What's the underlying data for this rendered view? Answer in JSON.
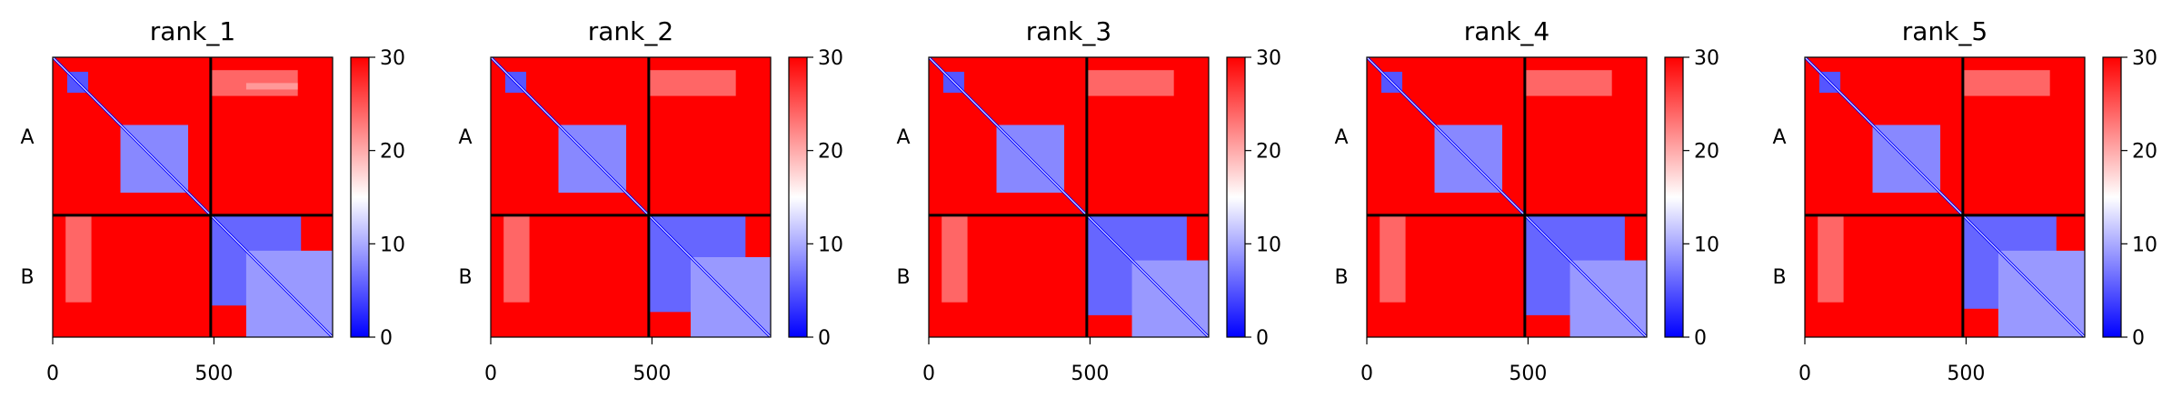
{
  "chart_data": [
    {
      "type": "heatmap",
      "title": "rank_1",
      "x_ticks": [
        0,
        500
      ],
      "y_ticks": [
        "A",
        "B"
      ],
      "xlim": [
        0,
        868
      ],
      "chain_boundary": 490,
      "colorbar": {
        "range": [
          0,
          30
        ],
        "ticks": [
          0,
          10,
          20,
          30
        ],
        "colors": [
          "#0000ff",
          "#ffffff",
          "#ff0000"
        ]
      },
      "regions": [
        {
          "x": [
            0,
            868
          ],
          "y": [
            0,
            868
          ],
          "value": 30
        },
        {
          "x": [
            45,
            110
          ],
          "y": [
            45,
            110
          ],
          "value": 5
        },
        {
          "x": [
            210,
            420
          ],
          "y": [
            210,
            420
          ],
          "value": 8
        },
        {
          "x": [
            490,
            770
          ],
          "y": [
            490,
            770
          ],
          "value": 6
        },
        {
          "x": [
            600,
            868
          ],
          "y": [
            600,
            868
          ],
          "value": 9
        },
        {
          "x": [
            40,
            120
          ],
          "y": [
            490,
            760
          ],
          "value": 24
        },
        {
          "x": [
            490,
            760
          ],
          "y": [
            40,
            120
          ],
          "value": 24
        },
        {
          "x": [
            600,
            760
          ],
          "y": [
            80,
            100
          ],
          "value": 21
        }
      ]
    },
    {
      "type": "heatmap",
      "title": "rank_2",
      "x_ticks": [
        0,
        500
      ],
      "y_ticks": [
        "A",
        "B"
      ],
      "xlim": [
        0,
        868
      ],
      "chain_boundary": 490,
      "colorbar": {
        "range": [
          0,
          30
        ],
        "ticks": [
          0,
          10,
          20,
          30
        ],
        "colors": [
          "#0000ff",
          "#ffffff",
          "#ff0000"
        ]
      },
      "regions": [
        {
          "x": [
            0,
            868
          ],
          "y": [
            0,
            868
          ],
          "value": 30
        },
        {
          "x": [
            45,
            110
          ],
          "y": [
            45,
            110
          ],
          "value": 5
        },
        {
          "x": [
            210,
            420
          ],
          "y": [
            210,
            420
          ],
          "value": 8
        },
        {
          "x": [
            490,
            790
          ],
          "y": [
            490,
            790
          ],
          "value": 6
        },
        {
          "x": [
            620,
            868
          ],
          "y": [
            620,
            868
          ],
          "value": 9
        },
        {
          "x": [
            40,
            120
          ],
          "y": [
            490,
            760
          ],
          "value": 24
        },
        {
          "x": [
            490,
            760
          ],
          "y": [
            40,
            120
          ],
          "value": 24
        }
      ]
    },
    {
      "type": "heatmap",
      "title": "rank_3",
      "x_ticks": [
        0,
        500
      ],
      "y_ticks": [
        "A",
        "B"
      ],
      "xlim": [
        0,
        868
      ],
      "chain_boundary": 490,
      "colorbar": {
        "range": [
          0,
          30
        ],
        "ticks": [
          0,
          10,
          20,
          30
        ],
        "colors": [
          "#0000ff",
          "#ffffff",
          "#ff0000"
        ]
      },
      "regions": [
        {
          "x": [
            0,
            868
          ],
          "y": [
            0,
            868
          ],
          "value": 30
        },
        {
          "x": [
            45,
            110
          ],
          "y": [
            45,
            110
          ],
          "value": 5
        },
        {
          "x": [
            210,
            420
          ],
          "y": [
            210,
            420
          ],
          "value": 8
        },
        {
          "x": [
            490,
            800
          ],
          "y": [
            490,
            800
          ],
          "value": 6
        },
        {
          "x": [
            630,
            868
          ],
          "y": [
            630,
            868
          ],
          "value": 9
        },
        {
          "x": [
            40,
            120
          ],
          "y": [
            490,
            760
          ],
          "value": 24
        },
        {
          "x": [
            490,
            760
          ],
          "y": [
            40,
            120
          ],
          "value": 24
        }
      ]
    },
    {
      "type": "heatmap",
      "title": "rank_4",
      "x_ticks": [
        0,
        500
      ],
      "y_ticks": [
        "A",
        "B"
      ],
      "xlim": [
        0,
        868
      ],
      "chain_boundary": 490,
      "colorbar": {
        "range": [
          0,
          30
        ],
        "ticks": [
          0,
          10,
          20,
          30
        ],
        "colors": [
          "#0000ff",
          "#ffffff",
          "#ff0000"
        ]
      },
      "regions": [
        {
          "x": [
            0,
            868
          ],
          "y": [
            0,
            868
          ],
          "value": 30
        },
        {
          "x": [
            45,
            110
          ],
          "y": [
            45,
            110
          ],
          "value": 5
        },
        {
          "x": [
            210,
            420
          ],
          "y": [
            210,
            420
          ],
          "value": 8
        },
        {
          "x": [
            490,
            800
          ],
          "y": [
            490,
            800
          ],
          "value": 6
        },
        {
          "x": [
            630,
            868
          ],
          "y": [
            630,
            868
          ],
          "value": 9
        },
        {
          "x": [
            40,
            120
          ],
          "y": [
            490,
            760
          ],
          "value": 24
        },
        {
          "x": [
            490,
            760
          ],
          "y": [
            40,
            120
          ],
          "value": 24
        }
      ]
    },
    {
      "type": "heatmap",
      "title": "rank_5",
      "x_ticks": [
        0,
        500
      ],
      "y_ticks": [
        "A",
        "B"
      ],
      "xlim": [
        0,
        868
      ],
      "chain_boundary": 490,
      "colorbar": {
        "range": [
          0,
          30
        ],
        "ticks": [
          0,
          10,
          20,
          30
        ],
        "colors": [
          "#0000ff",
          "#ffffff",
          "#ff0000"
        ]
      },
      "regions": [
        {
          "x": [
            0,
            868
          ],
          "y": [
            0,
            868
          ],
          "value": 30
        },
        {
          "x": [
            45,
            110
          ],
          "y": [
            45,
            110
          ],
          "value": 5
        },
        {
          "x": [
            210,
            420
          ],
          "y": [
            210,
            420
          ],
          "value": 8
        },
        {
          "x": [
            490,
            780
          ],
          "y": [
            490,
            780
          ],
          "value": 6
        },
        {
          "x": [
            600,
            868
          ],
          "y": [
            600,
            868
          ],
          "value": 9
        },
        {
          "x": [
            40,
            120
          ],
          "y": [
            490,
            760
          ],
          "value": 24
        },
        {
          "x": [
            490,
            760
          ],
          "y": [
            40,
            120
          ],
          "value": 24
        }
      ]
    }
  ]
}
